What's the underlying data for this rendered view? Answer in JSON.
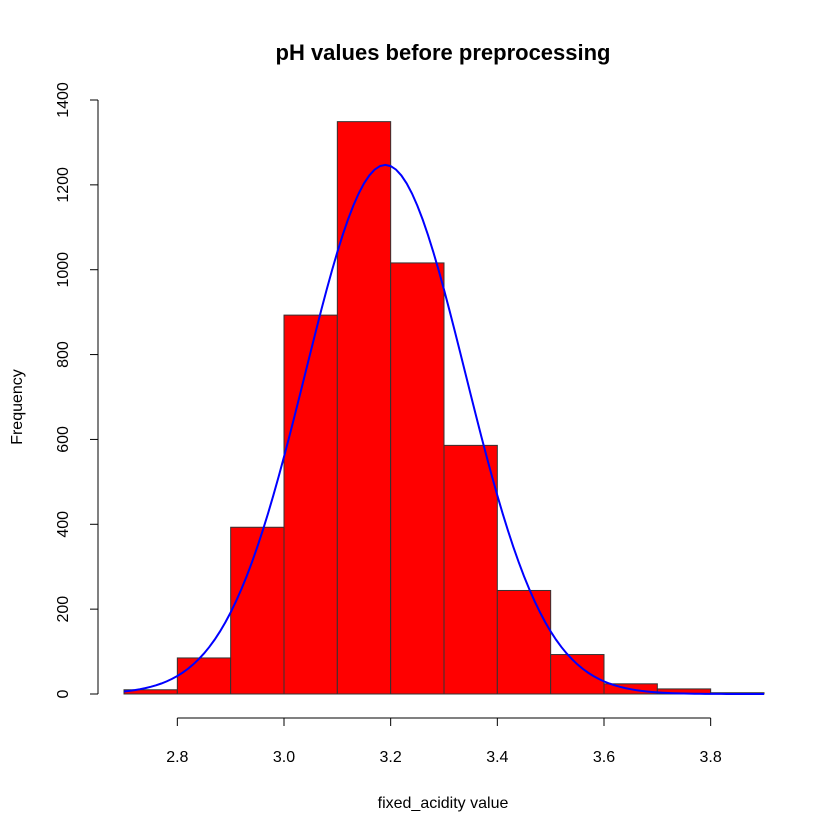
{
  "chart_data": {
    "type": "bar",
    "title": "pH values before preprocessing",
    "xlabel": "fixed_acidity value",
    "ylabel": "Frequency",
    "bins": [
      {
        "start": 2.7,
        "end": 2.8,
        "count": 10
      },
      {
        "start": 2.8,
        "end": 2.9,
        "count": 85
      },
      {
        "start": 2.9,
        "end": 3.0,
        "count": 393
      },
      {
        "start": 3.0,
        "end": 3.1,
        "count": 893
      },
      {
        "start": 3.1,
        "end": 3.2,
        "count": 1349
      },
      {
        "start": 3.2,
        "end": 3.3,
        "count": 1016
      },
      {
        "start": 3.3,
        "end": 3.4,
        "count": 586
      },
      {
        "start": 3.4,
        "end": 3.5,
        "count": 244
      },
      {
        "start": 3.5,
        "end": 3.6,
        "count": 93
      },
      {
        "start": 3.6,
        "end": 3.7,
        "count": 24
      },
      {
        "start": 3.7,
        "end": 3.8,
        "count": 12
      },
      {
        "start": 3.8,
        "end": 3.9,
        "count": 3
      }
    ],
    "curve": {
      "type": "normal-density",
      "mean": 3.19,
      "sd": 0.15,
      "peak": 1247
    },
    "x_ticks": [
      "2.8",
      "3.0",
      "3.2",
      "3.4",
      "3.6",
      "3.8"
    ],
    "y_ticks": [
      "0",
      "200",
      "400",
      "600",
      "800",
      "1000",
      "1200",
      "1400"
    ],
    "xlim": [
      2.7,
      3.9
    ],
    "ylim": [
      0,
      1400
    ],
    "colors": {
      "bar_fill": "#ff0000",
      "bar_stroke": "#333333",
      "curve": "#0000ff",
      "axis": "#000000"
    },
    "grid": false,
    "legend": "none"
  }
}
